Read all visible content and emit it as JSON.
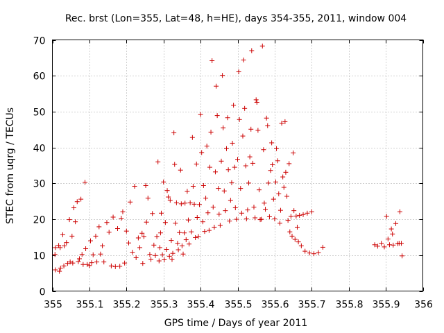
{
  "chart_data": {
    "type": "scatter",
    "title": "Rec. brst (Lon=355, Lat=48, h=HE), days 354-355, 2011, window 004",
    "xlabel": "GPS time / Days of year 2011",
    "ylabel": "STEC from uqrg / TECUs",
    "xlim": [
      355,
      356
    ],
    "ylim": [
      0,
      70
    ],
    "xticks": [
      355,
      355.1,
      355.2,
      355.3,
      355.4,
      355.5,
      355.6,
      355.7,
      355.8,
      355.9,
      356
    ],
    "xtick_labels": [
      "355",
      "355.1",
      "355.2",
      "355.3",
      "355.4",
      "355.5",
      "355.6",
      "355.7",
      "355.8",
      "355.9",
      "356"
    ],
    "yticks": [
      0,
      10,
      20,
      30,
      40,
      50,
      60,
      70
    ],
    "ytick_labels": [
      "0",
      "10",
      "20",
      "30",
      "40",
      "50",
      "60",
      "70"
    ],
    "grid": true,
    "marker": "+",
    "color": "#cc0000",
    "points": [
      [
        355.007,
        10.2
      ],
      [
        355.008,
        12.1
      ],
      [
        355.008,
        5.9
      ],
      [
        355.017,
        12.7
      ],
      [
        355.019,
        5.5
      ],
      [
        355.021,
        12.1
      ],
      [
        355.022,
        6.4
      ],
      [
        355.028,
        15.7
      ],
      [
        355.031,
        7
      ],
      [
        355.032,
        12.6
      ],
      [
        355.038,
        13.5
      ],
      [
        355.041,
        7.7
      ],
      [
        355.046,
        19.9
      ],
      [
        355.048,
        8.1
      ],
      [
        355.053,
        15.3
      ],
      [
        355.055,
        7.8
      ],
      [
        355.058,
        23.2
      ],
      [
        355.062,
        19.3
      ],
      [
        355.067,
        24.9
      ],
      [
        355.07,
        8.2
      ],
      [
        355.073,
        9
      ],
      [
        355.077,
        25.6
      ],
      [
        355.08,
        10.2
      ],
      [
        355.083,
        7.4
      ],
      [
        355.088,
        30.3
      ],
      [
        355.09,
        11.8
      ],
      [
        355.094,
        7.4
      ],
      [
        355.1,
        7.1
      ],
      [
        355.103,
        14
      ],
      [
        355.106,
        7.9
      ],
      [
        355.11,
        10.1
      ],
      [
        355.117,
        15.3
      ],
      [
        355.12,
        8.1
      ],
      [
        355.126,
        17.9
      ],
      [
        355.13,
        10.3
      ],
      [
        355.135,
        12.6
      ],
      [
        355.139,
        8.1
      ],
      [
        355.147,
        19.1
      ],
      [
        355.153,
        16.4
      ],
      [
        355.159,
        7
      ],
      [
        355.164,
        20.6
      ],
      [
        355.17,
        6.8
      ],
      [
        355.176,
        17.4
      ],
      [
        355.182,
        6.9
      ],
      [
        355.186,
        20.3
      ],
      [
        355.19,
        22.1
      ],
      [
        355.195,
        7.8
      ],
      [
        355.2,
        16.7
      ],
      [
        355.206,
        13.4
      ],
      [
        355.21,
        24.8
      ],
      [
        355.216,
        10.8
      ],
      [
        355.222,
        29.2
      ],
      [
        355.226,
        9.3
      ],
      [
        355.232,
        14.8
      ],
      [
        355.236,
        12.1
      ],
      [
        355.242,
        16.1
      ],
      [
        355.244,
        7.7
      ],
      [
        355.247,
        15.2
      ],
      [
        355.252,
        29.4
      ],
      [
        355.254,
        19.2
      ],
      [
        355.258,
        25.9
      ],
      [
        355.263,
        10.2
      ],
      [
        355.266,
        8.8
      ],
      [
        355.27,
        21.6
      ],
      [
        355.274,
        12.8
      ],
      [
        355.278,
        9.9
      ],
      [
        355.282,
        15.2
      ],
      [
        355.285,
        36
      ],
      [
        355.288,
        8.4
      ],
      [
        355.29,
        12.1
      ],
      [
        355.292,
        16.2
      ],
      [
        355.294,
        21.7
      ],
      [
        355.297,
        10.1
      ],
      [
        355.3,
        30.4
      ],
      [
        355.302,
        8.7
      ],
      [
        355.305,
        19.1
      ],
      [
        355.308,
        11.6
      ],
      [
        355.31,
        28
      ],
      [
        355.313,
        26.2
      ],
      [
        355.316,
        9.7
      ],
      [
        355.318,
        25.3
      ],
      [
        355.321,
        14.1
      ],
      [
        355.323,
        8.8
      ],
      [
        355.325,
        10.5
      ],
      [
        355.328,
        44.1
      ],
      [
        355.33,
        35.3
      ],
      [
        355.332,
        18.9
      ],
      [
        355.335,
        24.6
      ],
      [
        355.338,
        13.3
      ],
      [
        355.34,
        11.5
      ],
      [
        355.343,
        16.3
      ],
      [
        355.346,
        33.7
      ],
      [
        355.348,
        24.3
      ],
      [
        355.35,
        12.6
      ],
      [
        355.353,
        10.3
      ],
      [
        355.356,
        16.2
      ],
      [
        355.358,
        24.5
      ],
      [
        355.361,
        14.3
      ],
      [
        355.364,
        27.8
      ],
      [
        355.367,
        19.8
      ],
      [
        355.369,
        13.1
      ],
      [
        355.372,
        24.6
      ],
      [
        355.375,
        16.5
      ],
      [
        355.378,
        42.8
      ],
      [
        355.38,
        29.2
      ],
      [
        355.383,
        24.2
      ],
      [
        355.386,
        14.9
      ],
      [
        355.389,
        35.4
      ],
      [
        355.391,
        20.5
      ],
      [
        355.394,
        15.2
      ],
      [
        355.397,
        24.1
      ],
      [
        355.4,
        49.2
      ],
      [
        355.403,
        38.6
      ],
      [
        355.406,
        19.3
      ],
      [
        355.408,
        29.4
      ],
      [
        355.411,
        16.6
      ],
      [
        355.414,
        25.9
      ],
      [
        355.417,
        40.4
      ],
      [
        355.42,
        21.8
      ],
      [
        355.423,
        16.9
      ],
      [
        355.425,
        34.5
      ],
      [
        355.428,
        44.3
      ],
      [
        355.431,
        64.2
      ],
      [
        355.434,
        23.4
      ],
      [
        355.437,
        17.8
      ],
      [
        355.44,
        33.2
      ],
      [
        355.442,
        57.1
      ],
      [
        355.445,
        48.9
      ],
      [
        355.448,
        28.6
      ],
      [
        355.45,
        21.4
      ],
      [
        355.453,
        18.3
      ],
      [
        355.456,
        36.2
      ],
      [
        355.459,
        60.1
      ],
      [
        355.461,
        45.5
      ],
      [
        355.464,
        27.9
      ],
      [
        355.467,
        22.4
      ],
      [
        355.47,
        39.7
      ],
      [
        355.473,
        48.3
      ],
      [
        355.475,
        33.8
      ],
      [
        355.478,
        19.5
      ],
      [
        355.481,
        25.3
      ],
      [
        355.484,
        30.2
      ],
      [
        355.486,
        41.2
      ],
      [
        355.489,
        51.8
      ],
      [
        355.492,
        34.5
      ],
      [
        355.494,
        23.2
      ],
      [
        355.497,
        20
      ],
      [
        355.5,
        36.7
      ],
      [
        355.503,
        61.1
      ],
      [
        355.505,
        47.8
      ],
      [
        355.508,
        28.6
      ],
      [
        355.511,
        21.7
      ],
      [
        355.514,
        43.2
      ],
      [
        355.516,
        64.4
      ],
      [
        355.519,
        50.9
      ],
      [
        355.522,
        34.9
      ],
      [
        355.524,
        20.1
      ],
      [
        355.527,
        22.6
      ],
      [
        355.53,
        30.1
      ],
      [
        355.533,
        37.4
      ],
      [
        355.536,
        45.1
      ],
      [
        355.538,
        67
      ],
      [
        355.541,
        35.6
      ],
      [
        355.544,
        23.4
      ],
      [
        355.547,
        20.4
      ],
      [
        355.55,
        53.3
      ],
      [
        355.552,
        52.6
      ],
      [
        355.555,
        44.8
      ],
      [
        355.558,
        28.2
      ],
      [
        355.561,
        19.9
      ],
      [
        355.564,
        20
      ],
      [
        355.567,
        68.3
      ],
      [
        355.57,
        39.4
      ],
      [
        355.572,
        24.5
      ],
      [
        355.575,
        22.8
      ],
      [
        355.578,
        48.2
      ],
      [
        355.581,
        46.1
      ],
      [
        355.583,
        30.1
      ],
      [
        355.586,
        20.7
      ],
      [
        355.589,
        33.6
      ],
      [
        355.592,
        41.3
      ],
      [
        355.594,
        35.2
      ],
      [
        355.597,
        25.6
      ],
      [
        355.6,
        20.1
      ],
      [
        355.603,
        30.4
      ],
      [
        355.605,
        39.7
      ],
      [
        355.608,
        36.3
      ],
      [
        355.611,
        27.1
      ],
      [
        355.614,
        18.9
      ],
      [
        355.616,
        22.5
      ],
      [
        355.619,
        46.8
      ],
      [
        355.622,
        31.8
      ],
      [
        355.625,
        28.9
      ],
      [
        355.628,
        47.2
      ],
      [
        355.63,
        33.1
      ],
      [
        355.633,
        26.4
      ],
      [
        355.636,
        19.7
      ],
      [
        355.639,
        35.5
      ],
      [
        355.641,
        16.5
      ],
      [
        355.644,
        20.8
      ],
      [
        355.647,
        15.3
      ],
      [
        355.65,
        38.5
      ],
      [
        355.652,
        22.4
      ],
      [
        355.655,
        14.4
      ],
      [
        355.658,
        20.9
      ],
      [
        355.661,
        17.8
      ],
      [
        355.664,
        13.7
      ],
      [
        355.667,
        21.1
      ],
      [
        355.672,
        12.6
      ],
      [
        355.677,
        21.3
      ],
      [
        355.682,
        11.1
      ],
      [
        355.688,
        21.7
      ],
      [
        355.694,
        10.6
      ],
      [
        355.7,
        22.1
      ],
      [
        355.706,
        10.4
      ],
      [
        355.718,
        10.7
      ],
      [
        355.73,
        12.2
      ],
      [
        355.87,
        12.9
      ],
      [
        355.878,
        12.5
      ],
      [
        355.888,
        13.3
      ],
      [
        355.896,
        12.3
      ],
      [
        355.902,
        20.8
      ],
      [
        355.906,
        14.5
      ],
      [
        355.91,
        12.9
      ],
      [
        355.915,
        17.3
      ],
      [
        355.918,
        15.9
      ],
      [
        355.92,
        12.8
      ],
      [
        355.927,
        18.8
      ],
      [
        355.932,
        13.2
      ],
      [
        355.936,
        13.3
      ],
      [
        355.938,
        22.1
      ],
      [
        355.942,
        13.3
      ],
      [
        355.944,
        9.8
      ]
    ]
  }
}
